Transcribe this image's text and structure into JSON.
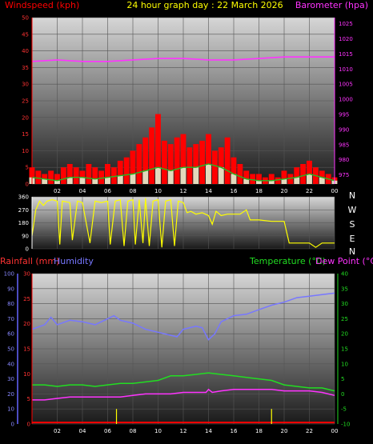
{
  "title": "24 hour graph day : 22 March 2026",
  "colors": {
    "wind_avg": "#ff0000",
    "wind_gust": "#22bb22",
    "wind_light": "#ddffdd",
    "barometer": "#ff33ff",
    "direction": "#ffff00",
    "humidity": "#7777ff",
    "temperature": "#22dd22",
    "dew_point": "#ff33ff",
    "rainfall": "#ff0000",
    "rain_rate": "#ffff00",
    "humidity_axis": "#6666ff"
  },
  "chart_data": [
    {
      "type": "line",
      "labels": {
        "left": "Windspeed (kph)",
        "right": "Barometer (hpa)"
      },
      "x_ticks": [
        "02",
        "04",
        "06",
        "08",
        "10",
        "12",
        "14",
        "16",
        "18",
        "20",
        "22",
        "00"
      ],
      "x_range": [
        0,
        24
      ],
      "y_left": {
        "range": [
          0,
          50
        ],
        "ticks": [
          "0",
          "5",
          "10",
          "15",
          "20",
          "25",
          "30",
          "35",
          "40",
          "45",
          "50"
        ]
      },
      "y_right": {
        "range": [
          972,
          1027
        ],
        "ticks": [
          "975",
          "980",
          "985",
          "990",
          "995",
          "1000",
          "1005",
          "1010",
          "1015",
          "1020",
          "1025"
        ]
      },
      "grid": true,
      "series": [
        {
          "key": "wind_avg",
          "axis": "left",
          "style": "bars",
          "points": [
            [
              0,
              5
            ],
            [
              0.5,
              4
            ],
            [
              1,
              3
            ],
            [
              1.5,
              4
            ],
            [
              2,
              3
            ],
            [
              2.5,
              5
            ],
            [
              3,
              6
            ],
            [
              3.5,
              5
            ],
            [
              4,
              4
            ],
            [
              4.5,
              6
            ],
            [
              5,
              5
            ],
            [
              5.5,
              4
            ],
            [
              6,
              6
            ],
            [
              6.5,
              5
            ],
            [
              7,
              7
            ],
            [
              7.5,
              8
            ],
            [
              8,
              10
            ],
            [
              8.5,
              12
            ],
            [
              9,
              14
            ],
            [
              9.5,
              17
            ],
            [
              10,
              21
            ],
            [
              10.5,
              13
            ],
            [
              11,
              12
            ],
            [
              11.5,
              14
            ],
            [
              12,
              15
            ],
            [
              12.5,
              11
            ],
            [
              13,
              12
            ],
            [
              13.5,
              13
            ],
            [
              14,
              15
            ],
            [
              14.5,
              10
            ],
            [
              15,
              11
            ],
            [
              15.5,
              14
            ],
            [
              16,
              8
            ],
            [
              16.5,
              6
            ],
            [
              17,
              4
            ],
            [
              17.5,
              3
            ],
            [
              18,
              3
            ],
            [
              18.5,
              2
            ],
            [
              19,
              3
            ],
            [
              19.5,
              2
            ],
            [
              20,
              4
            ],
            [
              20.5,
              3
            ],
            [
              21,
              5
            ],
            [
              21.5,
              6
            ],
            [
              22,
              7
            ],
            [
              22.5,
              5
            ],
            [
              23,
              4
            ],
            [
              23.5,
              3
            ],
            [
              24,
              2
            ]
          ]
        },
        {
          "key": "wind_gust",
          "axis": "left",
          "style": "line",
          "points": [
            [
              0,
              2
            ],
            [
              1,
              1.5
            ],
            [
              2,
              1
            ],
            [
              3,
              2
            ],
            [
              4,
              2
            ],
            [
              5,
              1.5
            ],
            [
              6,
              2
            ],
            [
              7,
              2.5
            ],
            [
              8,
              3
            ],
            [
              9,
              4
            ],
            [
              10,
              5
            ],
            [
              11,
              4
            ],
            [
              12,
              5
            ],
            [
              13,
              5
            ],
            [
              14,
              6
            ],
            [
              15,
              5
            ],
            [
              16,
              3
            ],
            [
              17,
              1.5
            ],
            [
              18,
              1
            ],
            [
              19,
              1
            ],
            [
              20,
              1.5
            ],
            [
              21,
              2
            ],
            [
              22,
              3
            ],
            [
              23,
              2
            ],
            [
              24,
              1
            ]
          ]
        },
        {
          "key": "barometer",
          "axis": "right",
          "style": "line",
          "points": [
            [
              0,
              1012.5
            ],
            [
              2,
              1013
            ],
            [
              4,
              1012.5
            ],
            [
              6,
              1012.5
            ],
            [
              8,
              1013
            ],
            [
              10,
              1013.5
            ],
            [
              12,
              1013.5
            ],
            [
              14,
              1013
            ],
            [
              16,
              1013
            ],
            [
              18,
              1013.5
            ],
            [
              20,
              1014
            ],
            [
              22,
              1014
            ],
            [
              24,
              1014
            ]
          ]
        }
      ]
    },
    {
      "type": "scatter",
      "labels": {
        "y_right": [
          "N",
          "W",
          "S",
          "E",
          "N"
        ]
      },
      "x_range": [
        0,
        24
      ],
      "y_left": {
        "range": [
          0,
          360
        ],
        "ticks": [
          "0",
          "90",
          "180",
          "270",
          "360"
        ]
      },
      "series": [
        {
          "key": "direction",
          "style": "line",
          "points": [
            [
              0,
              90
            ],
            [
              0.3,
              270
            ],
            [
              0.6,
              330
            ],
            [
              0.9,
              300
            ],
            [
              1.2,
              330
            ],
            [
              1.6,
              340
            ],
            [
              2,
              330
            ],
            [
              2.2,
              30
            ],
            [
              2.4,
              330
            ],
            [
              3,
              320
            ],
            [
              3.2,
              60
            ],
            [
              3.6,
              330
            ],
            [
              4,
              320
            ],
            [
              4.6,
              40
            ],
            [
              5,
              330
            ],
            [
              5.5,
              320
            ],
            [
              6,
              330
            ],
            [
              6.2,
              30
            ],
            [
              6.6,
              330
            ],
            [
              7,
              340
            ],
            [
              7.3,
              20
            ],
            [
              7.6,
              330
            ],
            [
              8,
              340
            ],
            [
              8.2,
              30
            ],
            [
              8.5,
              340
            ],
            [
              8.8,
              40
            ],
            [
              9,
              350
            ],
            [
              9.3,
              20
            ],
            [
              9.6,
              330
            ],
            [
              10,
              340
            ],
            [
              10.3,
              10
            ],
            [
              10.6,
              330
            ],
            [
              11,
              340
            ],
            [
              11.3,
              20
            ],
            [
              11.6,
              330
            ],
            [
              12,
              320
            ],
            [
              12.3,
              250
            ],
            [
              12.6,
              260
            ],
            [
              13,
              240
            ],
            [
              13.5,
              250
            ],
            [
              14,
              230
            ],
            [
              14.3,
              170
            ],
            [
              14.6,
              260
            ],
            [
              15,
              230
            ],
            [
              15.5,
              240
            ],
            [
              16,
              240
            ],
            [
              16.5,
              240
            ],
            [
              17,
              270
            ],
            [
              17.3,
              200
            ],
            [
              18,
              200
            ],
            [
              19,
              190
            ],
            [
              20,
              190
            ],
            [
              20.4,
              40
            ],
            [
              21,
              40
            ],
            [
              22,
              40
            ],
            [
              22.5,
              10
            ],
            [
              23,
              40
            ],
            [
              24,
              40
            ]
          ]
        }
      ]
    },
    {
      "type": "line",
      "labels": {
        "rainfall": "Rainfall (mm)",
        "humidity": "Humidity",
        "temperature": "Temperature (°C)",
        "dew_point": "Dew Point (°C)"
      },
      "x_ticks": [
        "02",
        "04",
        "06",
        "08",
        "10",
        "12",
        "14",
        "16",
        "18",
        "20",
        "22",
        "00"
      ],
      "x_range": [
        0,
        24
      ],
      "y_humidity": {
        "range": [
          0,
          100
        ],
        "ticks": [
          "0",
          "10",
          "20",
          "30",
          "40",
          "50",
          "60",
          "70",
          "80",
          "90",
          "100"
        ]
      },
      "y_rain": {
        "range": [
          0,
          30
        ],
        "ticks": [
          "0",
          "5",
          "10",
          "15",
          "20",
          "25",
          "30"
        ]
      },
      "y_temp": {
        "range": [
          -10,
          40
        ],
        "ticks": [
          "-10",
          "-5",
          "0",
          "5",
          "10",
          "15",
          "20",
          "25",
          "30",
          "35",
          "40"
        ]
      },
      "grid": true,
      "series": [
        {
          "key": "humidity",
          "axis": "humidity",
          "points": [
            [
              0,
              63
            ],
            [
              1,
              66
            ],
            [
              1.5,
              71
            ],
            [
              2,
              66
            ],
            [
              3,
              69
            ],
            [
              4,
              68
            ],
            [
              5,
              66
            ],
            [
              6,
              70
            ],
            [
              6.5,
              72
            ],
            [
              7,
              69
            ],
            [
              8,
              67
            ],
            [
              9,
              63
            ],
            [
              10,
              61
            ],
            [
              11,
              59
            ],
            [
              11.5,
              58
            ],
            [
              12,
              63
            ],
            [
              13,
              65
            ],
            [
              13.5,
              64
            ],
            [
              14,
              56
            ],
            [
              14.5,
              60
            ],
            [
              15,
              68
            ],
            [
              16,
              72
            ],
            [
              17,
              73
            ],
            [
              18,
              76
            ],
            [
              19,
              79
            ],
            [
              20,
              81
            ],
            [
              21,
              84
            ],
            [
              22,
              85
            ],
            [
              23,
              86
            ],
            [
              24,
              87
            ]
          ]
        },
        {
          "key": "temperature",
          "axis": "temp",
          "points": [
            [
              0,
              3
            ],
            [
              1,
              3
            ],
            [
              2,
              2.5
            ],
            [
              3,
              3
            ],
            [
              4,
              3
            ],
            [
              5,
              2.5
            ],
            [
              6,
              3
            ],
            [
              7,
              3.5
            ],
            [
              8,
              3.5
            ],
            [
              9,
              4
            ],
            [
              10,
              4.5
            ],
            [
              11,
              6
            ],
            [
              12,
              6
            ],
            [
              13,
              6.5
            ],
            [
              14,
              7
            ],
            [
              15,
              6.5
            ],
            [
              16,
              6
            ],
            [
              17,
              5.5
            ],
            [
              18,
              5
            ],
            [
              19,
              4.5
            ],
            [
              20,
              3
            ],
            [
              21,
              2.5
            ],
            [
              22,
              2
            ],
            [
              23,
              2
            ],
            [
              24,
              1
            ]
          ]
        },
        {
          "key": "dew_point",
          "axis": "temp",
          "points": [
            [
              0,
              -2
            ],
            [
              1,
              -2
            ],
            [
              2,
              -1.5
            ],
            [
              3,
              -1
            ],
            [
              4,
              -1
            ],
            [
              5,
              -1
            ],
            [
              6,
              -1
            ],
            [
              7,
              -1
            ],
            [
              8,
              -0.5
            ],
            [
              9,
              0
            ],
            [
              10,
              0
            ],
            [
              11,
              0
            ],
            [
              12,
              0.5
            ],
            [
              13,
              0.5
            ],
            [
              13.8,
              0.5
            ],
            [
              14,
              1.5
            ],
            [
              14.3,
              0.5
            ],
            [
              15,
              1
            ],
            [
              16,
              1.5
            ],
            [
              17,
              1.5
            ],
            [
              18,
              1.5
            ],
            [
              19,
              1.5
            ],
            [
              20,
              1
            ],
            [
              21,
              1
            ],
            [
              22,
              1
            ],
            [
              23,
              0.5
            ],
            [
              24,
              -0.5
            ]
          ]
        },
        {
          "key": "rainfall",
          "axis": "rain",
          "points": [
            [
              0,
              0.3
            ],
            [
              24,
              0.3
            ]
          ]
        },
        {
          "key": "rain_rate",
          "axis": "rain",
          "style": "spikes",
          "points": [
            [
              6.7,
              3
            ],
            [
              19,
              3
            ]
          ]
        }
      ]
    }
  ]
}
